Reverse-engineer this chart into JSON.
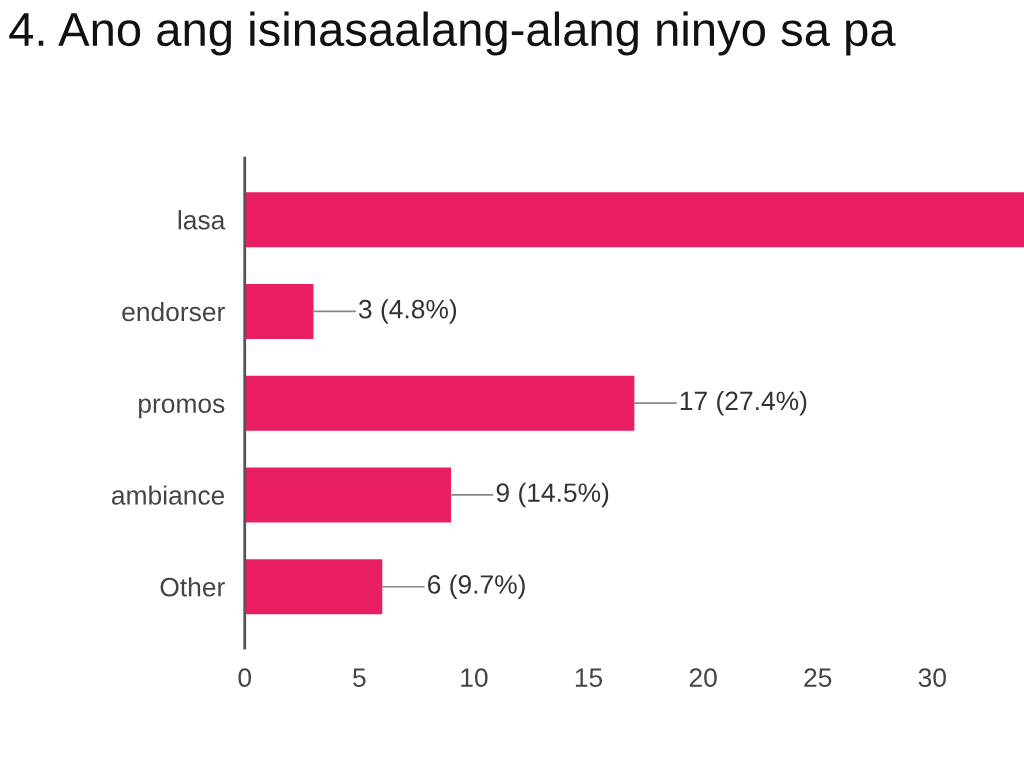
{
  "chart_data": {
    "type": "bar",
    "orientation": "horizontal",
    "title": "4. Ano ang isinasaalang-alang ninyo sa pa",
    "categories": [
      "lasa",
      "endorser",
      "promos",
      "ambiance",
      "Other"
    ],
    "values": [
      34,
      3,
      17,
      9,
      6
    ],
    "value_labels": [
      null,
      "3 (4.8%)",
      "17 (27.4%)",
      "9 (14.5%)",
      "6 (9.7%)"
    ],
    "color": "#e91e63",
    "xlim": [
      0,
      34
    ],
    "xticks": [
      0,
      5,
      10,
      15,
      20,
      25,
      30
    ],
    "grid": false
  }
}
